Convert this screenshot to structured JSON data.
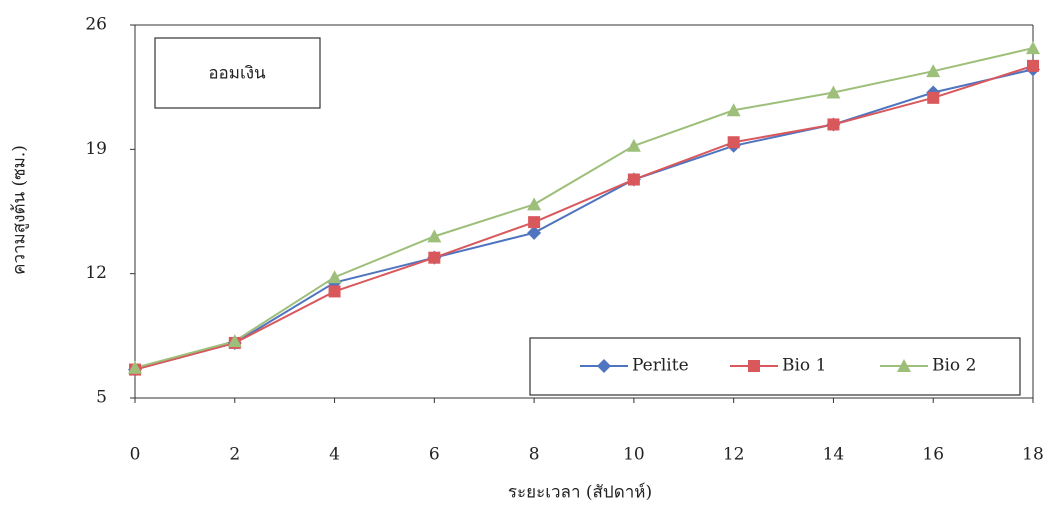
{
  "chart_data": {
    "type": "line",
    "annotation": "ออมเงิน",
    "x_label": "ระยะเวลา (สัปดาห์)",
    "y_label": "ความสูงต้น (ซม.)",
    "x": [
      0,
      2,
      4,
      6,
      8,
      10,
      12,
      14,
      16,
      18
    ],
    "series": [
      {
        "name": "Perlite",
        "color": "#4f74c0",
        "marker": "diamond",
        "values": [
          6.6,
          8.1,
          11.5,
          12.9,
          14.3,
          17.3,
          19.2,
          20.4,
          22.2,
          23.5
        ]
      },
      {
        "name": "Bio 1",
        "color": "#d9585c",
        "marker": "square",
        "values": [
          6.6,
          8.1,
          11.0,
          12.9,
          14.9,
          17.3,
          19.4,
          20.4,
          21.9,
          23.7
        ]
      },
      {
        "name": "Bio 2",
        "color": "#9dbf7a",
        "marker": "triangle",
        "values": [
          6.7,
          8.2,
          11.8,
          14.1,
          15.9,
          19.2,
          21.2,
          22.2,
          23.4,
          24.7
        ]
      }
    ],
    "xlim": [
      0,
      18
    ],
    "xticks": [
      0,
      2,
      4,
      6,
      8,
      10,
      12,
      14,
      16,
      18
    ],
    "ylim": [
      5,
      26
    ],
    "yticks": [
      5,
      12,
      19,
      26
    ],
    "legend": "bottom-right"
  }
}
